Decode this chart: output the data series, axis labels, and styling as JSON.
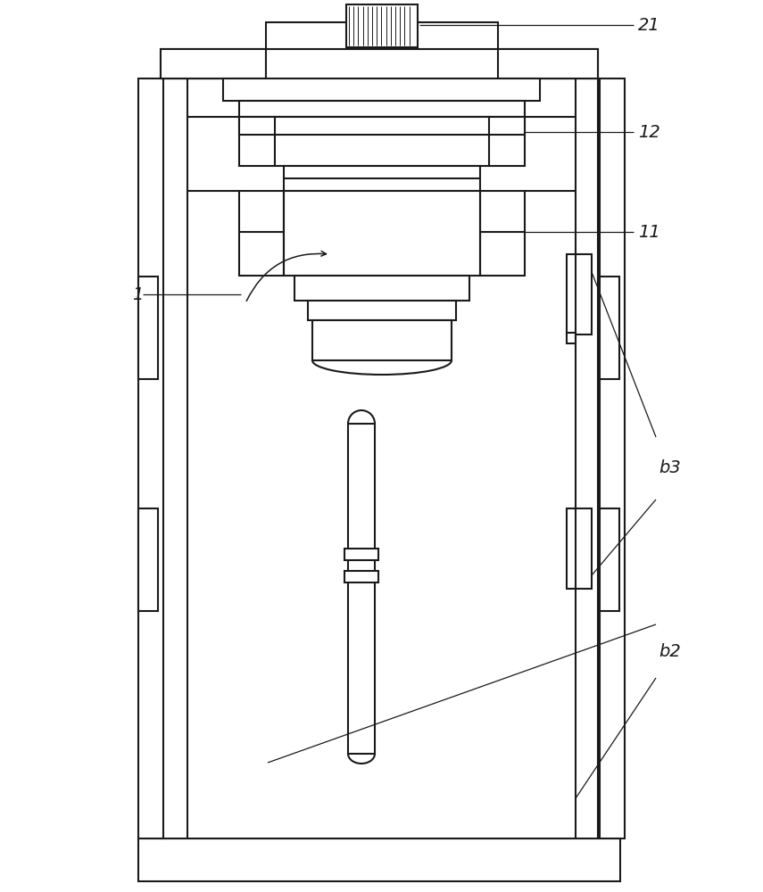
{
  "bg_color": "#ffffff",
  "lc": "#1a1a1a",
  "lw": 1.5,
  "fig_w": 8.55,
  "fig_h": 10.0,
  "dpi": 100,
  "label_fs": 14
}
